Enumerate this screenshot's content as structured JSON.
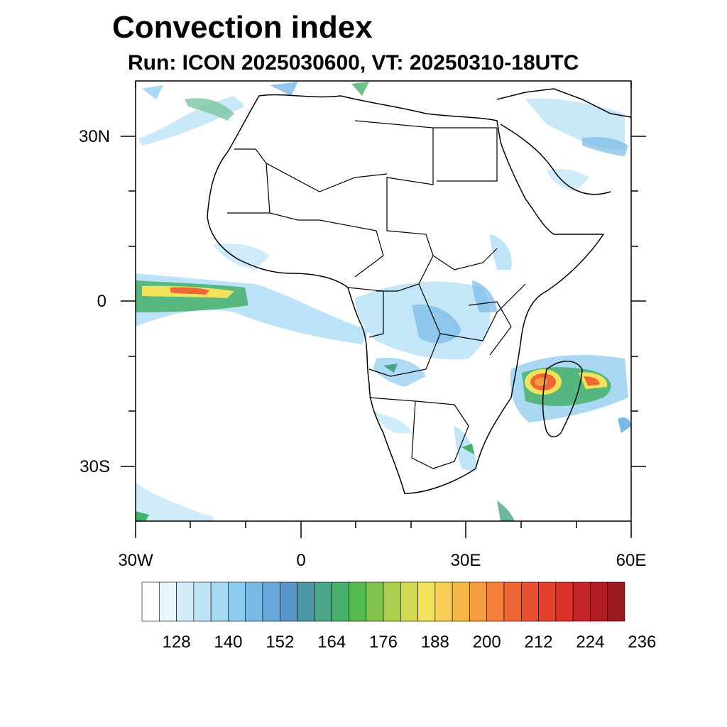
{
  "title": "Convection index",
  "subtitle": "Run: ICON 2025030600,  VT: 20250310-18UTC",
  "map": {
    "lon_range": [
      -30,
      60
    ],
    "lat_range": [
      -40,
      40
    ],
    "lat_labels": [
      "30N",
      "0",
      "30S"
    ],
    "lon_labels": [
      "30W",
      "0",
      "30E",
      "60E"
    ]
  },
  "colorbar": {
    "labels": [
      "128",
      "140",
      "152",
      "164",
      "176",
      "188",
      "200",
      "212",
      "224",
      "236"
    ],
    "colors": [
      "#ffffff",
      "#e8f5fc",
      "#d2ecf8",
      "#bce3f6",
      "#a5d9f4",
      "#8ecbef",
      "#78b9e6",
      "#68a7dc",
      "#5896cc",
      "#4b97a8",
      "#4aa488",
      "#47b06a",
      "#54b94e",
      "#82c24f",
      "#aacf4f",
      "#d1da52",
      "#f0e25a",
      "#f8cf55",
      "#f7b64a",
      "#f59c41",
      "#f2803b",
      "#ee6734",
      "#e9502f",
      "#e3402c",
      "#dc312b",
      "#c52428",
      "#b01d25",
      "#9c1a21"
    ]
  }
}
